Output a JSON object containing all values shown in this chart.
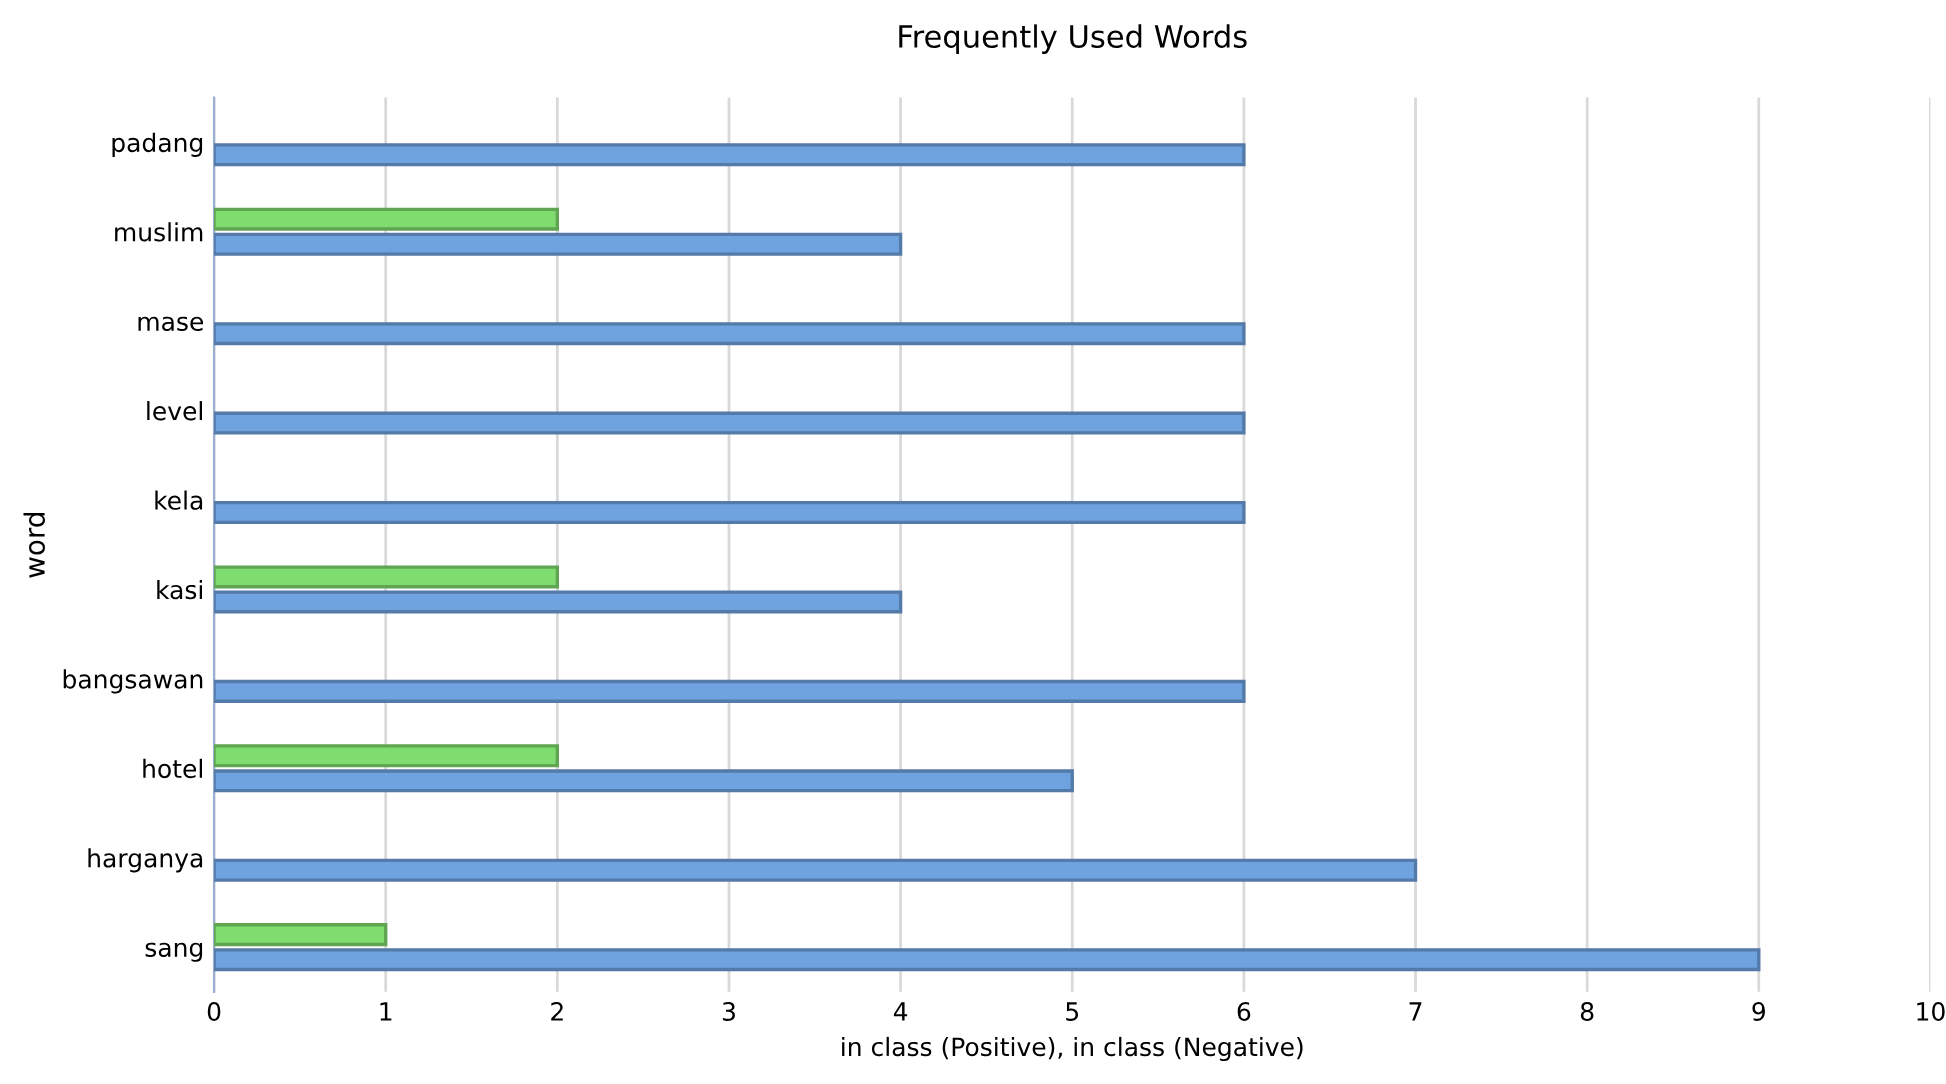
{
  "chart_data": {
    "type": "bar",
    "orientation": "horizontal",
    "title": "Frequently Used Words",
    "xlabel": "in class (Positive), in class (Negative)",
    "ylabel": "word",
    "categories": [
      "padang",
      "muslim",
      "mase",
      "level",
      "kela",
      "kasi",
      "bangsawan",
      "hotel",
      "harganya",
      "sang"
    ],
    "series": [
      {
        "color": "#7fdc6e",
        "values": [
          null,
          2,
          null,
          null,
          null,
          2,
          null,
          2,
          null,
          1
        ]
      },
      {
        "color": "#6fa3e0",
        "values": [
          6,
          4,
          6,
          6,
          6,
          4,
          6,
          5,
          7,
          9
        ]
      }
    ],
    "xlim": [
      0,
      10
    ],
    "xticks": [
      0,
      1,
      2,
      3,
      4,
      5,
      6,
      7,
      8,
      9,
      10
    ],
    "grid": "x",
    "legend": false
  }
}
